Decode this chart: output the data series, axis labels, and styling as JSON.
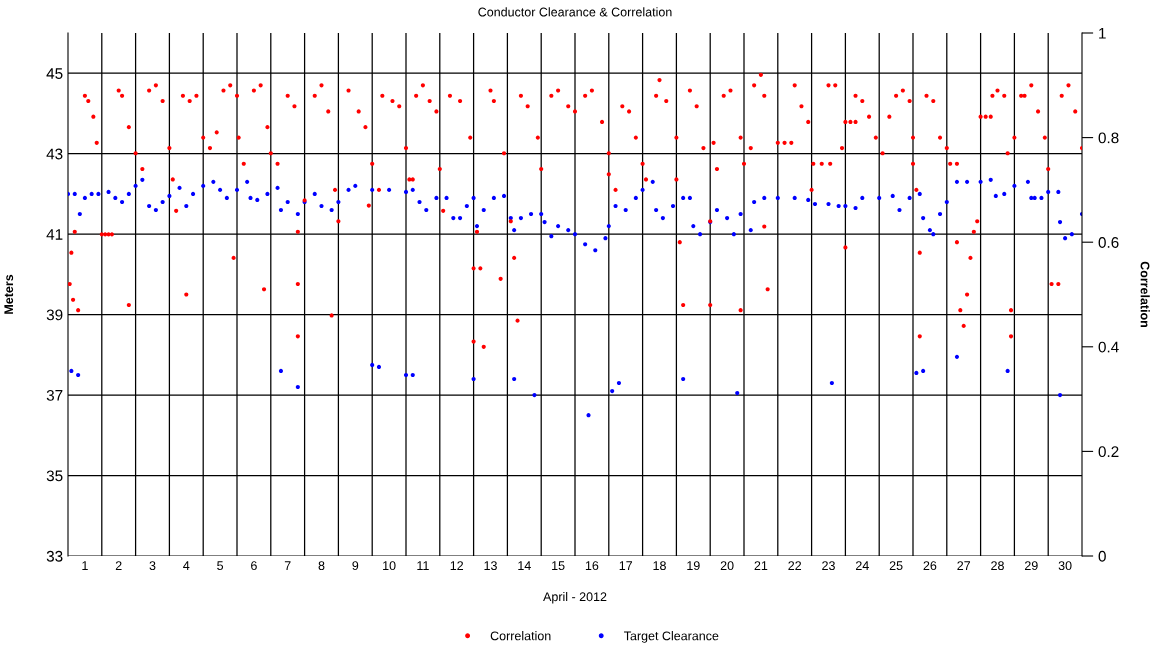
{
  "chart_data": {
    "type": "scatter",
    "title": "Conductor Clearance & Correlation",
    "xlabel": "April - 2012",
    "ylabel": "Meters",
    "y2label": "Correlation",
    "xlim": [
      1,
      31
    ],
    "xticks": [
      {
        "value": 1.5,
        "label": "1"
      },
      {
        "value": 2.5,
        "label": "2"
      },
      {
        "value": 3.5,
        "label": "3"
      },
      {
        "value": 4.5,
        "label": "4"
      },
      {
        "value": 5.5,
        "label": "5"
      },
      {
        "value": 6.5,
        "label": "6"
      },
      {
        "value": 7.5,
        "label": "7"
      },
      {
        "value": 8.5,
        "label": "8"
      },
      {
        "value": 9.5,
        "label": "9"
      },
      {
        "value": 10.5,
        "label": "10"
      },
      {
        "value": 11.5,
        "label": "11"
      },
      {
        "value": 12.5,
        "label": "12"
      },
      {
        "value": 13.5,
        "label": "13"
      },
      {
        "value": 14.5,
        "label": "14"
      },
      {
        "value": 15.5,
        "label": "15"
      },
      {
        "value": 16.5,
        "label": "16"
      },
      {
        "value": 17.5,
        "label": "17"
      },
      {
        "value": 18.5,
        "label": "18"
      },
      {
        "value": 19.5,
        "label": "19"
      },
      {
        "value": 20.5,
        "label": "20"
      },
      {
        "value": 21.5,
        "label": "21"
      },
      {
        "value": 22.5,
        "label": "22"
      },
      {
        "value": 23.5,
        "label": "23"
      },
      {
        "value": 24.5,
        "label": "24"
      },
      {
        "value": 25.5,
        "label": "25"
      },
      {
        "value": 26.5,
        "label": "26"
      },
      {
        "value": 27.5,
        "label": "27"
      },
      {
        "value": 28.5,
        "label": "28"
      },
      {
        "value": 29.5,
        "label": "29"
      },
      {
        "value": 30.5,
        "label": "30"
      }
    ],
    "ylim": [
      33,
      46
    ],
    "yticks": [
      33,
      35,
      37,
      39,
      41,
      43,
      45
    ],
    "y2lim": [
      0,
      1
    ],
    "y2ticks": [
      0,
      0.2,
      0.4,
      0.6,
      0.8,
      1
    ],
    "grid": "y",
    "legend": "bottom",
    "marker": "circle",
    "ref_lines": [
      {
        "axis": "x",
        "value": 2,
        "color": "#000000"
      },
      {
        "axis": "x",
        "value": 3,
        "color": "#000000"
      },
      {
        "axis": "x",
        "value": 4,
        "color": "#000000"
      },
      {
        "axis": "x",
        "value": 5,
        "color": "#000000"
      },
      {
        "axis": "x",
        "value": 6,
        "color": "#000000"
      },
      {
        "axis": "x",
        "value": 7,
        "color": "#000000"
      },
      {
        "axis": "x",
        "value": 8,
        "color": "#000000"
      },
      {
        "axis": "x",
        "value": 9,
        "color": "#000000"
      },
      {
        "axis": "x",
        "value": 10,
        "color": "#000000"
      },
      {
        "axis": "x",
        "value": 11,
        "color": "#000000"
      },
      {
        "axis": "x",
        "value": 12,
        "color": "#000000"
      },
      {
        "axis": "x",
        "value": 13,
        "color": "#000000"
      },
      {
        "axis": "x",
        "value": 14,
        "color": "#000000"
      },
      {
        "axis": "x",
        "value": 15,
        "color": "#000000"
      },
      {
        "axis": "x",
        "value": 16,
        "color": "#000000"
      },
      {
        "axis": "x",
        "value": 17,
        "color": "#000000"
      },
      {
        "axis": "x",
        "value": 18,
        "color": "#000000"
      },
      {
        "axis": "x",
        "value": 19,
        "color": "#000000"
      },
      {
        "axis": "x",
        "value": 20,
        "color": "#000000"
      },
      {
        "axis": "x",
        "value": 21,
        "color": "#000000"
      },
      {
        "axis": "x",
        "value": 22,
        "color": "#000000"
      },
      {
        "axis": "x",
        "value": 23,
        "color": "#000000"
      },
      {
        "axis": "x",
        "value": 24,
        "color": "#000000"
      },
      {
        "axis": "x",
        "value": 25,
        "color": "#000000"
      },
      {
        "axis": "x",
        "value": 26,
        "color": "#000000"
      },
      {
        "axis": "x",
        "value": 27,
        "color": "#000000"
      },
      {
        "axis": "x",
        "value": 28,
        "color": "#000000"
      },
      {
        "axis": "x",
        "value": 29,
        "color": "#000000"
      },
      {
        "axis": "x",
        "value": 30,
        "color": "#000000"
      }
    ],
    "series": [
      {
        "name": "Correlation",
        "color": "#ff0000",
        "axis": "y2",
        "x": [
          1.05,
          1.1,
          1.15,
          1.2,
          1.3,
          1.5,
          1.6,
          1.75,
          1.85,
          2.0,
          2.1,
          2.2,
          2.3,
          2.5,
          2.6,
          2.8,
          3.0,
          3.2,
          2.8,
          3.4,
          3.6,
          3.8,
          4.0,
          4.1,
          4.2,
          4.4,
          4.6,
          4.8,
          4.5,
          5.0,
          5.2,
          5.4,
          5.6,
          5.8,
          6.0,
          5.9,
          6.05,
          6.2,
          6.5,
          6.7,
          6.9,
          7.0,
          6.8,
          7.2,
          7.5,
          7.7,
          7.8,
          7.8,
          7.8,
          8.0,
          8.3,
          8.5,
          8.7,
          8.9,
          8.8,
          9.0,
          9.3,
          9.6,
          9.8,
          10.0,
          9.9,
          10.2,
          10.3,
          10.6,
          10.8,
          11.0,
          11.1,
          11.2,
          11.3,
          11.5,
          11.7,
          11.9,
          12.0,
          12.1,
          12.3,
          12.6,
          12.9,
          13.0,
          13.0,
          13.1,
          13.2,
          13.3,
          13.5,
          13.6,
          13.9,
          13.8,
          14.1,
          14.2,
          14.3,
          14.4,
          14.6,
          14.9,
          15.0,
          15.3,
          15.5,
          15.8,
          16.0,
          16.3,
          16.5,
          16.8,
          17.0,
          17.0,
          17.2,
          17.4,
          17.6,
          17.8,
          18.0,
          18.1,
          18.4,
          18.5,
          18.7,
          19.0,
          19.0,
          19.1,
          19.2,
          19.4,
          19.6,
          19.8,
          20.0,
          20.0,
          20.1,
          20.2,
          20.4,
          20.6,
          20.9,
          21.0,
          20.9,
          21.2,
          21.3,
          21.5,
          21.6,
          21.6,
          21.7,
          22.0,
          22.2,
          22.4,
          22.5,
          22.7,
          22.9,
          23.0,
          23.05,
          23.3,
          23.55,
          23.5,
          23.7,
          23.9,
          24.0,
          24.15,
          24.3,
          24.0,
          24.3,
          24.5,
          24.7,
          24.9,
          25.1,
          25.3,
          25.5,
          25.7,
          25.9,
          26.0,
          26.0,
          26.1,
          26.2,
          26.2,
          26.4,
          26.6,
          26.8,
          27.0,
          27.1,
          27.3,
          27.3,
          27.4,
          27.5,
          27.6,
          27.7,
          27.8,
          27.9,
          28.0,
          28.15,
          28.3,
          28.35,
          28.5,
          28.7,
          28.8,
          29.0,
          28.9,
          28.9,
          29.2,
          29.3,
          29.5,
          29.7,
          29.9,
          30.0,
          30.1,
          30.3,
          30.4,
          30.6,
          30.8,
          31.0
        ],
        "values": [
          0.52,
          0.58,
          0.49,
          0.62,
          0.47,
          0.88,
          0.87,
          0.84,
          0.79,
          0.615,
          0.615,
          0.615,
          0.615,
          0.89,
          0.88,
          0.82,
          0.77,
          0.74,
          0.48,
          0.89,
          0.9,
          0.87,
          0.78,
          0.72,
          0.66,
          0.88,
          0.87,
          0.88,
          0.5,
          0.8,
          0.78,
          0.81,
          0.89,
          0.9,
          0.88,
          0.57,
          0.8,
          0.75,
          0.89,
          0.9,
          0.82,
          0.77,
          0.51,
          0.75,
          0.88,
          0.86,
          0.62,
          0.52,
          0.42,
          0.68,
          0.88,
          0.9,
          0.85,
          0.7,
          0.46,
          0.64,
          0.89,
          0.85,
          0.82,
          0.75,
          0.67,
          0.7,
          0.88,
          0.87,
          0.86,
          0.78,
          0.72,
          0.72,
          0.88,
          0.9,
          0.87,
          0.85,
          0.74,
          0.66,
          0.88,
          0.87,
          0.8,
          0.55,
          0.41,
          0.62,
          0.55,
          0.4,
          0.89,
          0.87,
          0.77,
          0.53,
          0.64,
          0.57,
          0.45,
          0.88,
          0.86,
          0.8,
          0.74,
          0.88,
          0.89,
          0.86,
          0.85,
          0.88,
          0.89,
          0.83,
          0.77,
          0.73,
          0.7,
          0.86,
          0.85,
          0.8,
          0.75,
          0.72,
          0.88,
          0.91,
          0.87,
          0.8,
          0.72,
          0.6,
          0.48,
          0.89,
          0.86,
          0.78,
          0.64,
          0.48,
          0.79,
          0.74,
          0.88,
          0.89,
          0.8,
          0.75,
          0.47,
          0.78,
          0.9,
          0.92,
          0.88,
          0.63,
          0.51,
          0.79,
          0.79,
          0.79,
          0.9,
          0.86,
          0.83,
          0.7,
          0.75,
          0.75,
          0.75,
          0.9,
          0.9,
          0.78,
          0.83,
          0.83,
          0.83,
          0.59,
          0.88,
          0.87,
          0.84,
          0.8,
          0.77,
          0.84,
          0.88,
          0.89,
          0.87,
          0.8,
          0.75,
          0.7,
          0.58,
          0.42,
          0.88,
          0.87,
          0.8,
          0.78,
          0.75,
          0.75,
          0.6,
          0.47,
          0.44,
          0.5,
          0.57,
          0.62,
          0.64,
          0.84,
          0.84,
          0.84,
          0.88,
          0.89,
          0.88,
          0.77,
          0.8,
          0.47,
          0.42,
          0.88,
          0.88,
          0.9,
          0.85,
          0.8,
          0.74,
          0.52,
          0.52,
          0.88,
          0.9,
          0.85,
          0.78
        ]
      },
      {
        "name": "Target Clearance",
        "color": "#0000ff",
        "axis": "y",
        "x": [
          1.0,
          1.2,
          1.35,
          1.5,
          1.7,
          1.9,
          2.2,
          2.4,
          2.6,
          2.8,
          3.0,
          3.2,
          3.4,
          3.6,
          3.8,
          4.0,
          4.3,
          4.5,
          4.7,
          5.0,
          5.3,
          5.5,
          5.7,
          6.0,
          6.3,
          6.4,
          6.6,
          6.9,
          7.2,
          7.3,
          7.5,
          7.8,
          8.0,
          8.3,
          8.5,
          8.8,
          9.0,
          9.3,
          9.5,
          10.0,
          10.5,
          11.0,
          11.2,
          11.4,
          11.6,
          11.9,
          12.2,
          12.4,
          12.6,
          12.8,
          13.0,
          13.1,
          13.3,
          13.6,
          13.9,
          14.1,
          14.2,
          14.4,
          14.7,
          15.0,
          15.1,
          15.3,
          15.5,
          15.8,
          16.0,
          16.3,
          16.6,
          16.9,
          17.0,
          17.2,
          17.5,
          17.8,
          18.0,
          18.3,
          18.4,
          18.6,
          18.9,
          19.2,
          19.4,
          19.5,
          19.7,
          20.0,
          20.2,
          20.5,
          20.7,
          20.9,
          21.2,
          21.3,
          21.6,
          22.0,
          22.5,
          22.9,
          23.1,
          23.5,
          23.8,
          24.0,
          24.3,
          24.5,
          25.0,
          25.4,
          25.6,
          25.9,
          26.2,
          26.3,
          26.5,
          26.6,
          26.8,
          27.0,
          27.3,
          27.6,
          28.0,
          28.3,
          28.45,
          28.7,
          29.0,
          29.4,
          29.5,
          29.6,
          29.8,
          30.0,
          30.3,
          30.35,
          30.5,
          30.7,
          31.0,
          1.1,
          1.3,
          7.3,
          7.8,
          10.0,
          10.2,
          11.0,
          11.2,
          13.0,
          14.2,
          14.8,
          16.4,
          17.1,
          17.3,
          19.2,
          20.8,
          23.6,
          26.1,
          26.3,
          27.3,
          28.8,
          30.35
        ],
        "values": [
          42.0,
          42.0,
          41.5,
          41.9,
          42.0,
          42.0,
          42.05,
          41.9,
          41.8,
          42.0,
          42.2,
          42.35,
          41.7,
          41.6,
          41.8,
          41.95,
          42.15,
          41.7,
          42.0,
          42.2,
          42.3,
          42.1,
          41.9,
          42.1,
          42.3,
          41.9,
          41.85,
          42.0,
          42.15,
          41.6,
          41.8,
          41.5,
          41.8,
          42.0,
          41.7,
          41.6,
          41.8,
          42.1,
          42.2,
          42.1,
          42.1,
          42.05,
          42.1,
          41.8,
          41.6,
          41.9,
          41.9,
          41.4,
          41.4,
          41.7,
          41.9,
          41.2,
          41.6,
          41.9,
          41.95,
          41.4,
          41.1,
          41.4,
          41.5,
          41.5,
          41.3,
          40.95,
          41.2,
          41.1,
          41.0,
          40.75,
          40.6,
          40.9,
          41.2,
          41.7,
          41.6,
          41.9,
          42.1,
          42.3,
          41.6,
          41.4,
          41.7,
          41.9,
          41.9,
          41.2,
          41.0,
          41.3,
          41.6,
          41.4,
          41.0,
          41.5,
          41.1,
          41.8,
          41.9,
          41.9,
          41.9,
          41.85,
          41.75,
          41.75,
          41.7,
          41.7,
          41.65,
          41.9,
          41.9,
          41.95,
          41.6,
          41.9,
          42.0,
          41.4,
          41.1,
          41.0,
          41.5,
          41.8,
          42.3,
          42.3,
          42.3,
          42.35,
          41.95,
          42.0,
          42.2,
          42.3,
          41.9,
          41.9,
          41.9,
          42.05,
          42.05,
          41.3,
          40.9,
          41.0,
          41.5,
          37.6,
          37.5,
          37.6,
          37.2,
          37.75,
          37.7,
          37.5,
          37.5,
          37.4,
          37.4,
          37.0,
          36.5,
          37.1,
          37.3,
          37.4,
          37.05,
          37.3,
          37.55,
          37.6,
          37.95,
          37.6,
          37.0
        ]
      }
    ]
  }
}
